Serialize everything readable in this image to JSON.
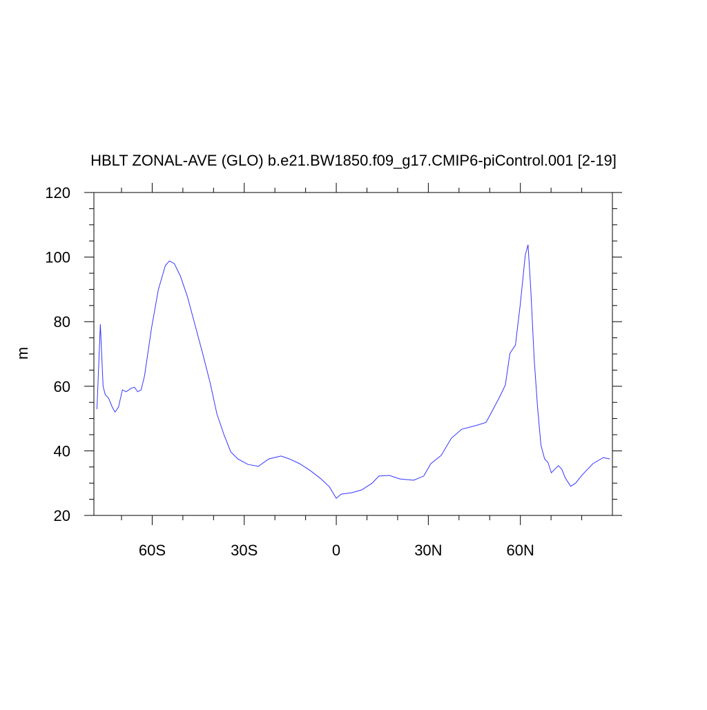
{
  "chart_data": {
    "type": "line",
    "title": "HBLT ZONAL-AVE (GLO) b.e21.BW1850.f09_g17.CMIP6-piControl.001 [2-19]",
    "y_label": "m",
    "x": [
      -78.0,
      -76.9,
      -76.0,
      -75.3,
      -74.2,
      -73.0,
      -72.1,
      -71.0,
      -69.7,
      -68.5,
      -67.0,
      -65.8,
      -64.7,
      -63.6,
      -62.5,
      -60.2,
      -58.0,
      -55.7,
      -54.4,
      -52.8,
      -50.8,
      -48.5,
      -46.1,
      -43.4,
      -41.1,
      -38.9,
      -36.6,
      -34.4,
      -32.1,
      -28.8,
      -25.4,
      -22.0,
      -18.0,
      -15.3,
      -11.9,
      -8.5,
      -5.2,
      -2.2,
      0.0,
      1.6,
      4.9,
      8.3,
      11.7,
      13.9,
      17.3,
      20.7,
      25.2,
      28.5,
      30.8,
      34.2,
      37.5,
      40.9,
      45.4,
      48.8,
      50.3,
      53.3,
      55.1,
      56.6,
      58.4,
      60.0,
      61.6,
      62.5,
      63.4,
      64.5,
      65.6,
      66.7,
      67.9,
      69.0,
      70.1,
      71.2,
      72.4,
      73.5,
      74.6,
      76.4,
      78.0,
      80.2,
      83.6,
      87.0,
      89.2
    ],
    "series": [
      {
        "name": "HBLT",
        "color": "#3333ff",
        "values": [
          52.9,
          79.2,
          60,
          57.4,
          56.3,
          53.5,
          52,
          53.5,
          58.9,
          58.3,
          59.3,
          59.7,
          58.3,
          58.9,
          63.2,
          78.1,
          89.9,
          97.4,
          98.8,
          98,
          94.1,
          87.7,
          79.2,
          69.6,
          61,
          51.4,
          45,
          39.7,
          37.5,
          35.8,
          35.2,
          37.5,
          38.4,
          37.5,
          36,
          33.9,
          31.5,
          28.8,
          25.3,
          26.6,
          27,
          27.9,
          30,
          32.2,
          32.4,
          31.3,
          30.9,
          32.2,
          36,
          38.6,
          43.9,
          46.7,
          47.8,
          48.8,
          51.4,
          56.8,
          60.4,
          70.2,
          72.8,
          85.6,
          100.6,
          103.8,
          89.9,
          68.5,
          53.5,
          41.8,
          37.5,
          36.4,
          33.2,
          34.3,
          35.4,
          34.3,
          31.7,
          29,
          30,
          32.6,
          36,
          37.9,
          37.5
        ]
      }
    ],
    "xlim": [
      -79,
      90
    ],
    "xticks": [
      {
        "value": -60,
        "label": "60S"
      },
      {
        "value": -30,
        "label": "30S"
      },
      0,
      {
        "value": 30,
        "label": "30N"
      },
      {
        "value": 60,
        "label": "60N"
      }
    ],
    "xminor_ticks": [
      -70,
      -50,
      -40,
      -20,
      -10,
      10,
      20,
      40,
      50,
      70,
      80
    ],
    "ylim": [
      20,
      120
    ],
    "yticks": [
      20,
      40,
      60,
      80,
      100,
      120
    ],
    "yminor_ticks": [
      25,
      30,
      35,
      45,
      50,
      55,
      65,
      70,
      75,
      85,
      90,
      95,
      105,
      110,
      115
    ],
    "grid": false
  }
}
